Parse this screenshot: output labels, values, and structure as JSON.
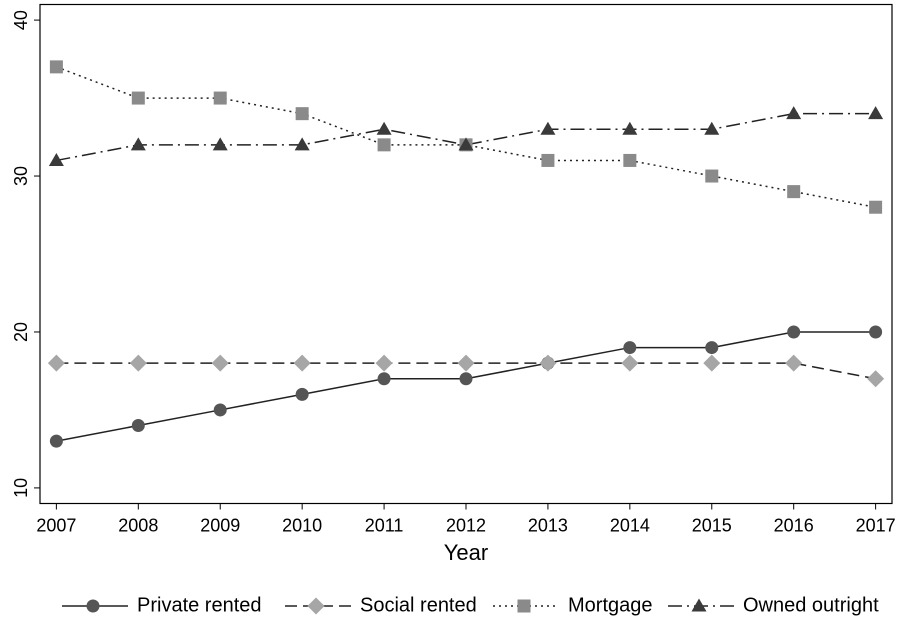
{
  "chart_data": {
    "type": "line",
    "x_label": "Year",
    "x": [
      2007,
      2008,
      2009,
      2010,
      2011,
      2012,
      2013,
      2014,
      2015,
      2016,
      2017
    ],
    "xlim": [
      2006.8,
      2017.2
    ],
    "xticks": [
      2007,
      2008,
      2009,
      2010,
      2011,
      2012,
      2013,
      2014,
      2015,
      2016,
      2017
    ],
    "ylim": [
      9,
      41
    ],
    "yticks": [
      10,
      20,
      30,
      40
    ],
    "legend": "bottom",
    "series": [
      {
        "name": "Private rented",
        "color": "#555555",
        "marker": "circle",
        "line_style": "solid",
        "values": [
          13,
          14,
          15,
          16,
          17,
          17,
          18,
          19,
          19,
          20,
          20
        ]
      },
      {
        "name": "Social rented",
        "color": "#a6a6a6",
        "marker": "diamond",
        "line_style": "dashed",
        "values": [
          18,
          18,
          18,
          18,
          18,
          18,
          18,
          18,
          18,
          18,
          17
        ]
      },
      {
        "name": "Mortgage",
        "color": "#8a8a8a",
        "marker": "square",
        "line_style": "dotted",
        "values": [
          37,
          35,
          35,
          34,
          32,
          32,
          31,
          31,
          30,
          29,
          28
        ]
      },
      {
        "name": "Owned outright",
        "color": "#3a3a3a",
        "marker": "triangle",
        "line_style": "dashdot",
        "values": [
          31,
          32,
          32,
          32,
          33,
          32,
          33,
          33,
          33,
          34,
          34
        ]
      }
    ]
  }
}
